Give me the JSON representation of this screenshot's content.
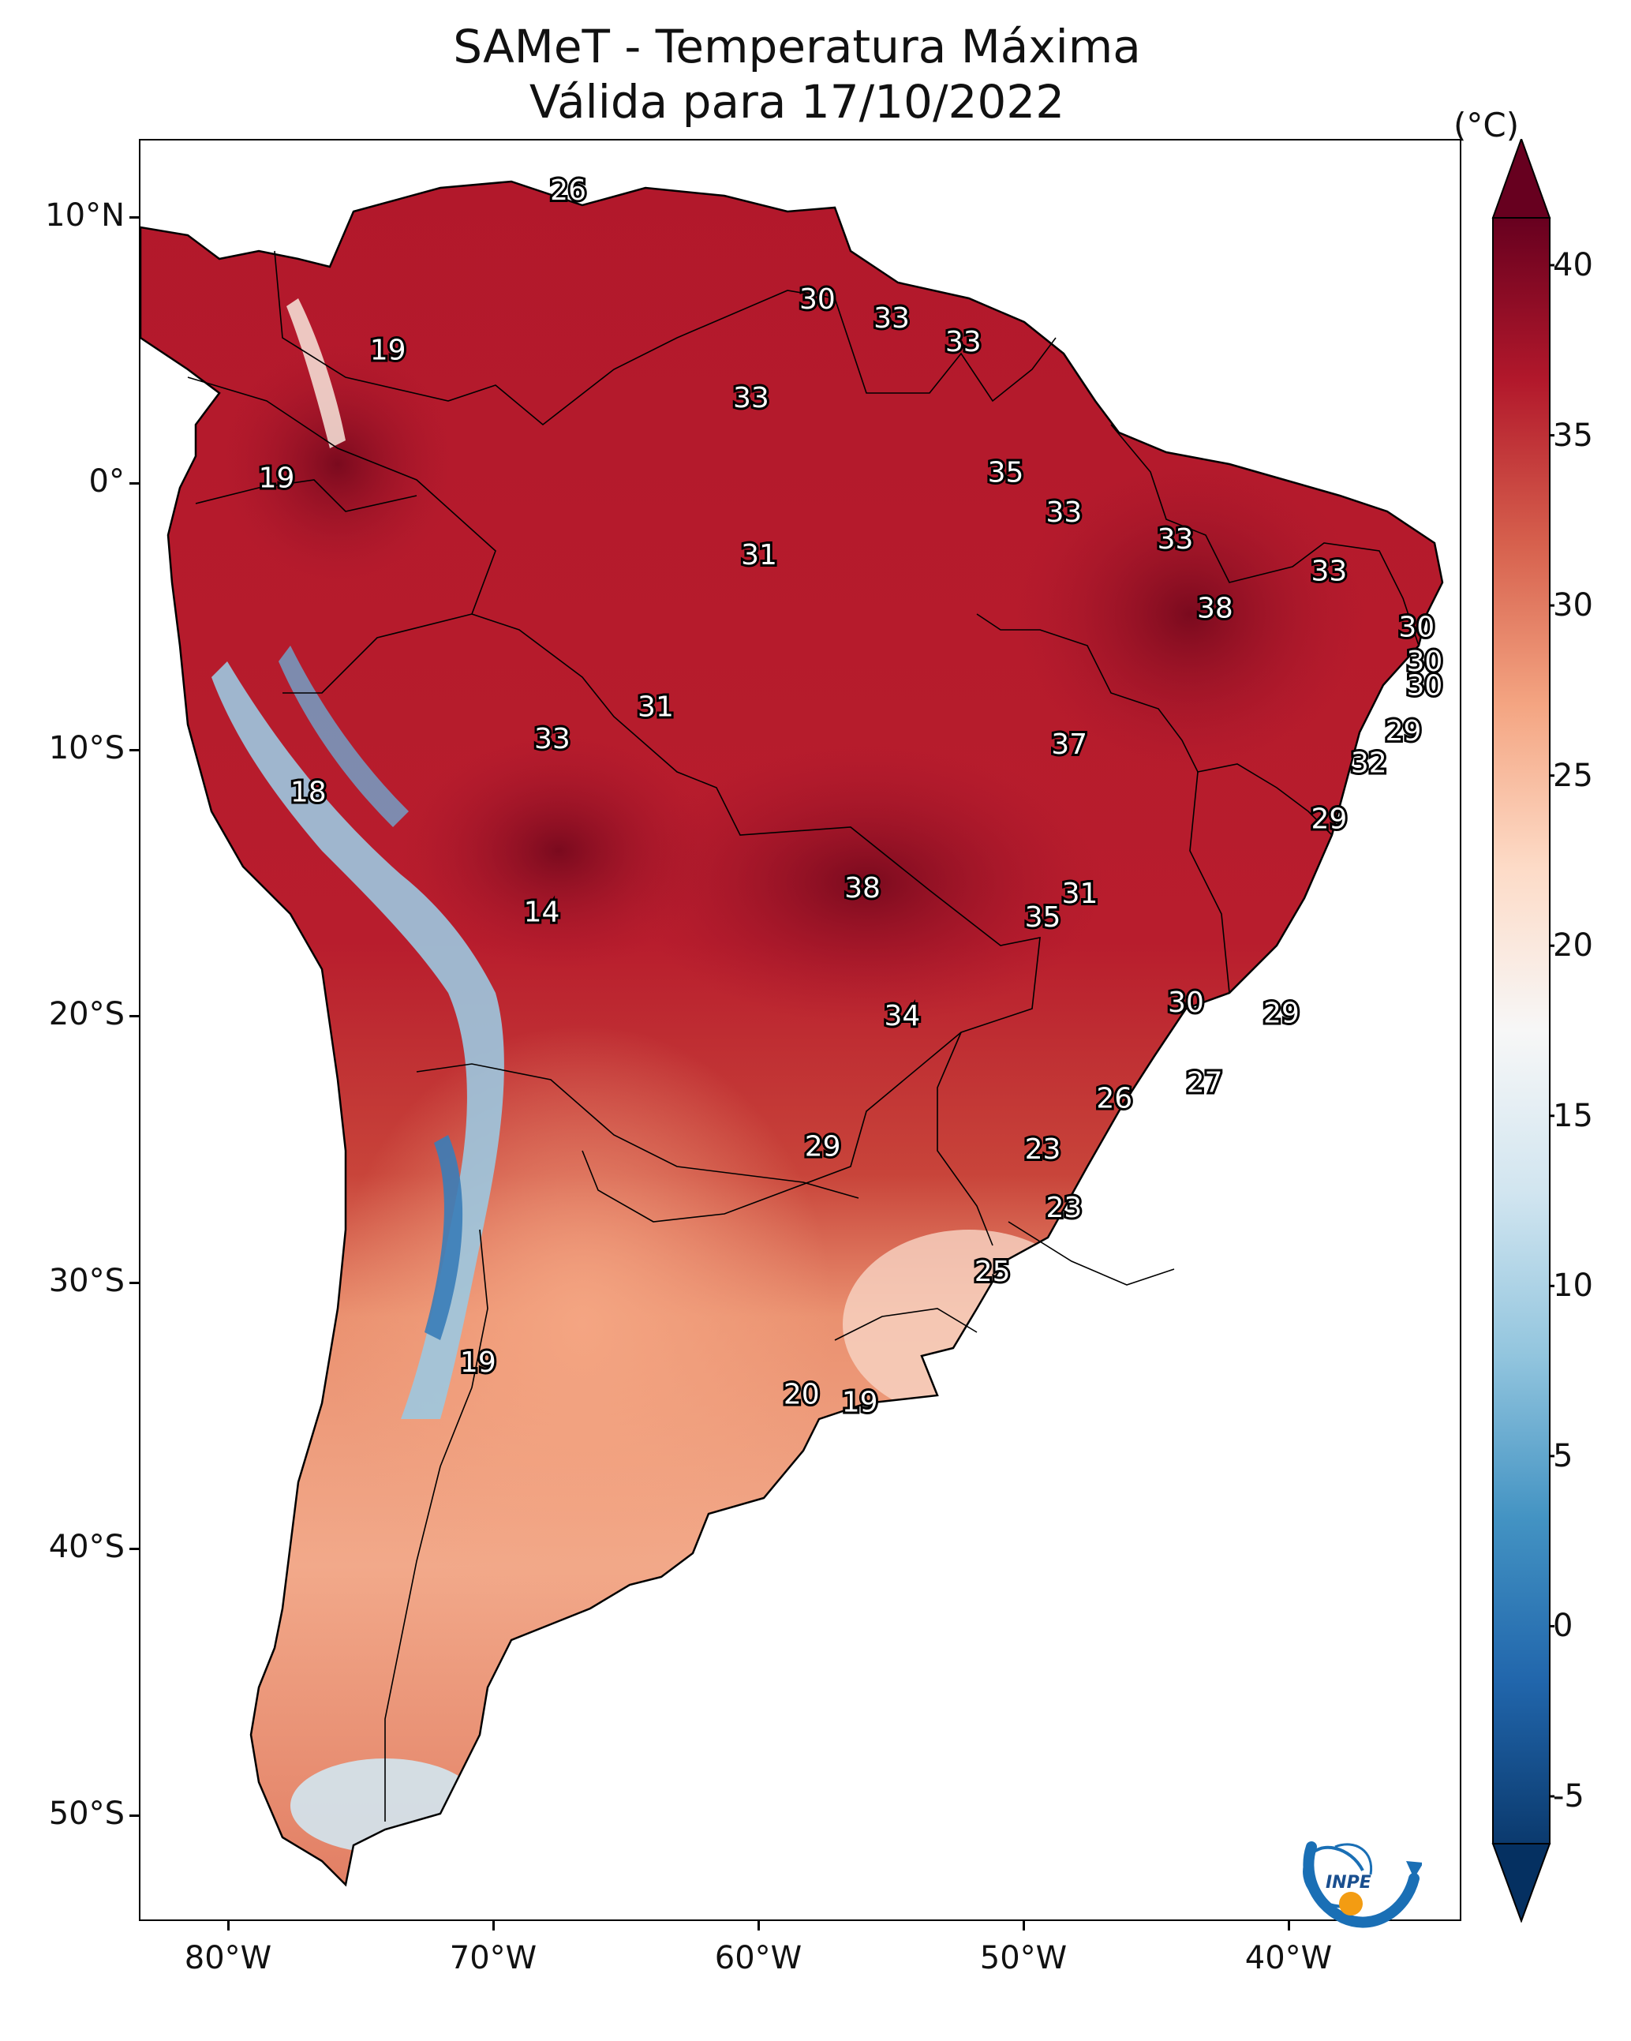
{
  "title_line1": "SAMeT - Temperatura Máxima",
  "title_line2": "Válida para 17/10/2022",
  "colorbar": {
    "unit": "(°C)",
    "min": -5,
    "max": 40,
    "ticks": [
      "-5",
      "0",
      "5",
      "10",
      "15",
      "20",
      "25",
      "30",
      "35",
      "40"
    ],
    "colors": [
      "#0b3a6e",
      "#2166ac",
      "#4393c3",
      "#92c5de",
      "#d1e5f0",
      "#f7f7f7",
      "#fddbc7",
      "#f4a582",
      "#d6604d",
      "#b2182b",
      "#67001f"
    ]
  },
  "axes": {
    "lat_labels": [
      "10°N",
      "0°",
      "10°S",
      "20°S",
      "30°S",
      "40°S",
      "50°S"
    ],
    "lon_labels": [
      "80°W",
      "70°W",
      "60°W",
      "50°W",
      "40°W"
    ]
  },
  "stations": [
    {
      "value": "26",
      "lon": -67.2,
      "lat": 10.6
    },
    {
      "value": "19",
      "lon": -74.0,
      "lat": 4.6
    },
    {
      "value": "30",
      "lon": -57.8,
      "lat": 6.5
    },
    {
      "value": "33",
      "lon": -55.0,
      "lat": 5.8
    },
    {
      "value": "33",
      "lon": -52.3,
      "lat": 4.9
    },
    {
      "value": "33",
      "lon": -60.3,
      "lat": 2.8
    },
    {
      "value": "19",
      "lon": -78.2,
      "lat": -0.2
    },
    {
      "value": "35",
      "lon": -50.7,
      "lat": 0.0
    },
    {
      "value": "33",
      "lon": -48.5,
      "lat": -1.5
    },
    {
      "value": "33",
      "lon": -44.3,
      "lat": -2.5
    },
    {
      "value": "31",
      "lon": -60.0,
      "lat": -3.1
    },
    {
      "value": "33",
      "lon": -38.5,
      "lat": -3.7
    },
    {
      "value": "38",
      "lon": -42.8,
      "lat": -5.1
    },
    {
      "value": "30",
      "lon": -35.2,
      "lat": -5.8
    },
    {
      "value": "30",
      "lon": -34.9,
      "lat": -7.1
    },
    {
      "value": "30",
      "lon": -34.9,
      "lat": -8.0
    },
    {
      "value": "31",
      "lon": -63.9,
      "lat": -8.8
    },
    {
      "value": "33",
      "lon": -67.8,
      "lat": -10.0
    },
    {
      "value": "37",
      "lon": -48.3,
      "lat": -10.2
    },
    {
      "value": "29",
      "lon": -35.7,
      "lat": -9.7
    },
    {
      "value": "32",
      "lon": -37.0,
      "lat": -10.9
    },
    {
      "value": "18",
      "lon": -77.0,
      "lat": -12.0
    },
    {
      "value": "29",
      "lon": -38.5,
      "lat": -13.0
    },
    {
      "value": "14",
      "lon": -68.2,
      "lat": -16.5
    },
    {
      "value": "38",
      "lon": -56.1,
      "lat": -15.6
    },
    {
      "value": "31",
      "lon": -47.9,
      "lat": -15.8
    },
    {
      "value": "35",
      "lon": -49.3,
      "lat": -16.7
    },
    {
      "value": "30",
      "lon": -43.9,
      "lat": -19.9
    },
    {
      "value": "29",
      "lon": -40.3,
      "lat": -20.3
    },
    {
      "value": "34",
      "lon": -54.6,
      "lat": -20.4
    },
    {
      "value": "27",
      "lon": -43.2,
      "lat": -22.9
    },
    {
      "value": "26",
      "lon": -46.6,
      "lat": -23.5
    },
    {
      "value": "29",
      "lon": -57.6,
      "lat": -25.3
    },
    {
      "value": "23",
      "lon": -49.3,
      "lat": -25.4
    },
    {
      "value": "23",
      "lon": -48.5,
      "lat": -27.6
    },
    {
      "value": "25",
      "lon": -51.2,
      "lat": -30.0
    },
    {
      "value": "19",
      "lon": -70.6,
      "lat": -33.4
    },
    {
      "value": "20",
      "lon": -58.4,
      "lat": -34.6
    },
    {
      "value": "19",
      "lon": -56.2,
      "lat": -34.9
    }
  ]
}
